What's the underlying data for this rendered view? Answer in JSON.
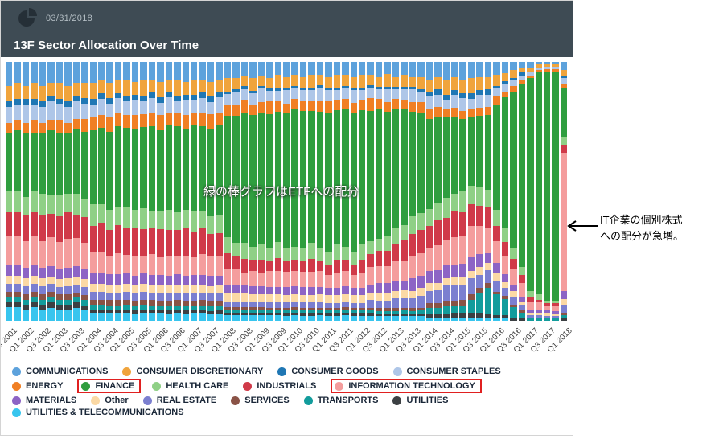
{
  "header": {
    "date": "03/31/2018",
    "title": "13F Sector Allocation Over Time"
  },
  "icons": {
    "header_icon": "pie-chart-icon",
    "annotation_arrow_icon": "left-arrow-icon"
  },
  "colors": {
    "header_bg": "#3e4b54",
    "highlight_box": "#e02020"
  },
  "annotations": {
    "etf_note": "緑の棒グラフはETFへの配分",
    "it_note_line1": "IT企業の個別株式",
    "it_note_line2": "への配分が急増。"
  },
  "legend": {
    "rows": [
      [
        0,
        1,
        2,
        3
      ],
      [
        4,
        5,
        6,
        7,
        8
      ],
      [
        9,
        10,
        11,
        12,
        13,
        14
      ],
      [
        15
      ]
    ]
  },
  "chart_data": {
    "type": "bar",
    "stacked": true,
    "stack_mode": "percent",
    "title": "13F Sector Allocation Over Time",
    "xlabel": "",
    "ylabel": "",
    "ylim": [
      0,
      100
    ],
    "grid": false,
    "legend_position": "bottom",
    "x_tick_every": 2,
    "x": [
      "Q3 2001",
      "Q4 2001",
      "Q1 2002",
      "Q2 2002",
      "Q3 2002",
      "Q4 2002",
      "Q1 2003",
      "Q2 2003",
      "Q3 2003",
      "Q4 2003",
      "Q1 2004",
      "Q2 2004",
      "Q3 2004",
      "Q4 2004",
      "Q1 2005",
      "Q2 2005",
      "Q3 2005",
      "Q4 2005",
      "Q1 2006",
      "Q2 2006",
      "Q3 2006",
      "Q4 2006",
      "Q1 2007",
      "Q2 2007",
      "Q3 2007",
      "Q4 2007",
      "Q1 2008",
      "Q2 2008",
      "Q3 2008",
      "Q4 2008",
      "Q1 2009",
      "Q2 2009",
      "Q3 2009",
      "Q4 2009",
      "Q1 2010",
      "Q2 2010",
      "Q3 2010",
      "Q4 2010",
      "Q1 2011",
      "Q2 2011",
      "Q3 2011",
      "Q4 2011",
      "Q1 2012",
      "Q2 2012",
      "Q3 2012",
      "Q4 2012",
      "Q1 2013",
      "Q2 2013",
      "Q3 2013",
      "Q4 2013",
      "Q1 2014",
      "Q2 2014",
      "Q3 2014",
      "Q4 2014",
      "Q1 2015",
      "Q2 2015",
      "Q3 2015",
      "Q4 2015",
      "Q1 2016",
      "Q2 2016",
      "Q3 2016",
      "Q4 2016",
      "Q1 2017",
      "Q2 2017",
      "Q3 2017",
      "Q4 2017",
      "Q1 2018"
    ],
    "series": [
      {
        "name": "COMMUNICATIONS",
        "color": "#5da2dc",
        "boxed": false,
        "values": [
          9,
          8,
          9,
          8,
          9,
          8,
          8,
          9,
          8,
          8,
          8,
          7,
          8,
          7,
          7,
          8,
          7,
          7,
          8,
          7,
          7,
          8,
          7,
          7,
          8,
          7,
          6,
          6,
          5,
          6,
          5,
          6,
          5,
          6,
          5,
          6,
          5,
          5,
          6,
          5,
          5,
          6,
          5,
          5,
          6,
          5,
          6,
          5,
          6,
          6,
          7,
          6,
          7,
          6,
          7,
          6,
          6,
          6,
          5,
          4,
          3,
          2,
          2,
          1,
          1,
          1,
          3
        ]
      },
      {
        "name": "CONSUMER DISCRETIONARY",
        "color": "#f0a43c",
        "boxed": false,
        "values": [
          6,
          6,
          5,
          6,
          6,
          5,
          6,
          6,
          5,
          6,
          6,
          5,
          6,
          5,
          6,
          5,
          6,
          5,
          6,
          5,
          6,
          5,
          6,
          5,
          6,
          5,
          5,
          4,
          4,
          5,
          4,
          4,
          5,
          4,
          4,
          4,
          5,
          4,
          4,
          5,
          4,
          4,
          5,
          4,
          4,
          5,
          4,
          5,
          4,
          5,
          5,
          5,
          6,
          5,
          5,
          6,
          5,
          5,
          4,
          3,
          3,
          2,
          2,
          1,
          1,
          1,
          2
        ]
      },
      {
        "name": "CONSUMER GOODS",
        "color": "#1f77b4",
        "boxed": false,
        "values": [
          2,
          2,
          2,
          2,
          2,
          2,
          2,
          2,
          2,
          2,
          2,
          2,
          2,
          2,
          2,
          2,
          2,
          2,
          2,
          2,
          2,
          2,
          2,
          2,
          2,
          2,
          1,
          1,
          1,
          1,
          1,
          1,
          1,
          1,
          1,
          1,
          1,
          1,
          1,
          1,
          1,
          1,
          1,
          1,
          1,
          1,
          1,
          1,
          1,
          1,
          2,
          2,
          2,
          2,
          2,
          2,
          2,
          2,
          1,
          1,
          1,
          1,
          0,
          0,
          0,
          0,
          1
        ]
      },
      {
        "name": "CONSUMER STAPLES",
        "color": "#aec6e8",
        "boxed": false,
        "values": [
          6,
          6,
          7,
          6,
          6,
          7,
          6,
          6,
          7,
          6,
          5,
          6,
          5,
          6,
          5,
          6,
          5,
          6,
          5,
          6,
          5,
          6,
          5,
          6,
          5,
          6,
          4,
          5,
          4,
          4,
          5,
          4,
          4,
          5,
          4,
          4,
          4,
          5,
          4,
          4,
          4,
          5,
          4,
          4,
          4,
          5,
          4,
          4,
          5,
          4,
          5,
          5,
          4,
          5,
          5,
          4,
          5,
          5,
          3,
          3,
          2,
          2,
          1,
          1,
          1,
          1,
          2
        ]
      },
      {
        "name": "ENERGY",
        "color": "#f07f24",
        "boxed": false,
        "values": [
          4,
          4,
          4,
          5,
          4,
          4,
          5,
          4,
          4,
          5,
          5,
          5,
          6,
          5,
          5,
          6,
          5,
          5,
          6,
          5,
          5,
          6,
          5,
          5,
          6,
          5,
          4,
          4,
          5,
          4,
          4,
          5,
          4,
          4,
          4,
          4,
          4,
          4,
          5,
          4,
          4,
          4,
          4,
          5,
          4,
          4,
          4,
          4,
          4,
          4,
          4,
          4,
          3,
          4,
          3,
          3,
          3,
          3,
          3,
          2,
          2,
          1,
          1,
          1,
          1,
          1,
          2
        ]
      },
      {
        "name": "FINANCE",
        "color": "#2f9e3f",
        "boxed": true,
        "values": [
          22,
          23,
          24,
          22,
          23,
          25,
          24,
          23,
          25,
          26,
          28,
          29,
          30,
          31,
          30,
          32,
          31,
          33,
          32,
          34,
          33,
          32,
          34,
          33,
          35,
          36,
          45,
          47,
          48,
          50,
          49,
          51,
          50,
          52,
          52,
          53,
          51,
          52,
          54,
          53,
          52,
          54,
          53,
          51,
          52,
          50,
          48,
          46,
          42,
          40,
          36,
          34,
          32,
          30,
          28,
          26,
          28,
          30,
          40,
          48,
          58,
          68,
          80,
          85,
          90,
          92,
          18
        ]
      },
      {
        "name": "HEALTH CARE",
        "color": "#8fd086",
        "boxed": false,
        "values": [
          8,
          8,
          7,
          8,
          8,
          7,
          8,
          7,
          8,
          7,
          8,
          7,
          8,
          7,
          8,
          7,
          8,
          7,
          7,
          8,
          7,
          7,
          8,
          7,
          7,
          7,
          6,
          5,
          6,
          5,
          6,
          5,
          6,
          5,
          5,
          5,
          6,
          5,
          5,
          6,
          5,
          5,
          6,
          5,
          5,
          6,
          6,
          6,
          7,
          7,
          7,
          7,
          8,
          7,
          8,
          7,
          7,
          7,
          6,
          5,
          4,
          3,
          2,
          2,
          1,
          1,
          3
        ]
      },
      {
        "name": "INDUSTRIALS",
        "color": "#d03a49",
        "boxed": false,
        "values": [
          9,
          9,
          10,
          9,
          10,
          9,
          10,
          10,
          9,
          10,
          10,
          11,
          10,
          11,
          10,
          11,
          10,
          10,
          11,
          10,
          10,
          11,
          10,
          10,
          9,
          9,
          6,
          5,
          5,
          4,
          5,
          4,
          5,
          4,
          4,
          4,
          5,
          4,
          4,
          5,
          4,
          4,
          5,
          5,
          6,
          6,
          7,
          8,
          9,
          9,
          9,
          10,
          9,
          10,
          9,
          8,
          8,
          8,
          6,
          5,
          4,
          3,
          2,
          1,
          1,
          1,
          3
        ]
      },
      {
        "name": "INFORMATION TECHNOLOGY",
        "color": "#f49d9d",
        "boxed": true,
        "values": [
          11,
          11,
          10,
          11,
          10,
          11,
          10,
          11,
          11,
          10,
          8,
          8,
          7,
          8,
          7,
          8,
          7,
          8,
          7,
          8,
          7,
          8,
          7,
          8,
          8,
          8,
          6,
          6,
          5,
          6,
          5,
          6,
          6,
          6,
          6,
          6,
          6,
          6,
          5,
          6,
          6,
          5,
          6,
          7,
          7,
          7,
          8,
          8,
          9,
          9,
          9,
          10,
          10,
          11,
          11,
          12,
          11,
          10,
          8,
          7,
          6,
          5,
          3,
          3,
          2,
          2,
          52
        ]
      },
      {
        "name": "MATERIALS",
        "color": "#8d64c5",
        "boxed": false,
        "values": [
          4,
          4,
          4,
          4,
          4,
          4,
          4,
          4,
          4,
          4,
          4,
          4,
          4,
          4,
          4,
          4,
          4,
          4,
          4,
          4,
          4,
          4,
          4,
          4,
          4,
          4,
          3,
          3,
          3,
          3,
          3,
          3,
          3,
          3,
          3,
          3,
          3,
          3,
          3,
          3,
          3,
          3,
          3,
          3,
          4,
          4,
          4,
          4,
          5,
          5,
          5,
          5,
          5,
          5,
          5,
          5,
          5,
          4,
          4,
          3,
          2,
          2,
          1,
          1,
          1,
          1,
          3
        ]
      },
      {
        "name": "Other",
        "color": "#fbd9a5",
        "boxed": false,
        "values": [
          3,
          3,
          3,
          3,
          3,
          3,
          3,
          3,
          3,
          3,
          3,
          3,
          3,
          3,
          3,
          3,
          3,
          3,
          3,
          3,
          3,
          3,
          3,
          3,
          3,
          3,
          3,
          3,
          3,
          3,
          3,
          3,
          3,
          3,
          3,
          3,
          3,
          3,
          3,
          3,
          3,
          3,
          3,
          3,
          3,
          3,
          3,
          3,
          3,
          3,
          3,
          3,
          3,
          3,
          3,
          3,
          3,
          3,
          3,
          2,
          2,
          1,
          1,
          1,
          1,
          1,
          2
        ]
      },
      {
        "name": "REAL ESTATE",
        "color": "#7b7fd0",
        "boxed": false,
        "values": [
          3,
          3,
          3,
          3,
          3,
          3,
          3,
          3,
          3,
          3,
          3,
          3,
          3,
          3,
          3,
          3,
          3,
          3,
          3,
          3,
          3,
          3,
          3,
          3,
          3,
          3,
          2,
          2,
          2,
          2,
          2,
          2,
          2,
          2,
          2,
          2,
          2,
          2,
          2,
          2,
          2,
          2,
          2,
          3,
          3,
          3,
          4,
          4,
          4,
          5,
          5,
          5,
          6,
          6,
          6,
          6,
          5,
          5,
          4,
          3,
          3,
          2,
          1,
          1,
          1,
          1,
          3
        ]
      },
      {
        "name": "SERVICES",
        "color": "#8a5346",
        "boxed": false,
        "values": [
          2,
          2,
          2,
          2,
          2,
          2,
          2,
          2,
          2,
          2,
          2,
          2,
          2,
          2,
          2,
          2,
          2,
          2,
          2,
          2,
          2,
          2,
          2,
          2,
          2,
          2,
          1,
          1,
          1,
          1,
          1,
          1,
          1,
          1,
          1,
          1,
          1,
          1,
          1,
          1,
          1,
          1,
          1,
          1,
          1,
          1,
          1,
          1,
          1,
          1,
          2,
          2,
          2,
          2,
          2,
          2,
          2,
          2,
          1,
          1,
          1,
          1,
          0,
          0,
          0,
          0,
          1
        ]
      },
      {
        "name": "TRANSPORTS",
        "color": "#129c9c",
        "boxed": false,
        "values": [
          2,
          2,
          2,
          2,
          2,
          2,
          2,
          2,
          2,
          2,
          2,
          2,
          2,
          2,
          2,
          2,
          2,
          2,
          2,
          2,
          2,
          2,
          2,
          2,
          2,
          2,
          1,
          1,
          1,
          1,
          1,
          1,
          1,
          1,
          1,
          1,
          1,
          1,
          1,
          1,
          1,
          1,
          1,
          1,
          1,
          1,
          1,
          1,
          1,
          1,
          2,
          2,
          3,
          3,
          3,
          5,
          8,
          10,
          8,
          6,
          4,
          2,
          1,
          1,
          1,
          1,
          1
        ]
      },
      {
        "name": "UTILITIES",
        "color": "#3c4043",
        "boxed": false,
        "values": [
          2,
          2,
          2,
          2,
          2,
          2,
          2,
          2,
          2,
          2,
          1,
          1,
          1,
          1,
          1,
          1,
          1,
          1,
          1,
          1,
          1,
          1,
          1,
          1,
          1,
          1,
          1,
          1,
          1,
          1,
          1,
          1,
          1,
          1,
          1,
          1,
          1,
          1,
          1,
          1,
          1,
          1,
          1,
          1,
          1,
          1,
          1,
          1,
          1,
          1,
          2,
          2,
          2,
          2,
          2,
          2,
          2,
          2,
          1,
          1,
          1,
          1,
          0,
          0,
          0,
          0,
          1
        ]
      },
      {
        "name": "UTILITIES & TELECOMMUNICATIONS",
        "color": "#38c5ee",
        "boxed": false,
        "values": [
          5,
          5,
          4,
          5,
          4,
          5,
          4,
          4,
          5,
          4,
          3,
          3,
          3,
          3,
          3,
          3,
          3,
          3,
          3,
          3,
          3,
          3,
          3,
          3,
          3,
          3,
          2,
          2,
          2,
          2,
          2,
          2,
          2,
          2,
          2,
          2,
          2,
          2,
          2,
          2,
          2,
          2,
          2,
          2,
          2,
          2,
          2,
          2,
          2,
          2,
          1,
          1,
          1,
          1,
          1,
          1,
          1,
          1,
          1,
          1,
          0,
          0,
          0,
          0,
          0,
          0,
          0
        ]
      }
    ]
  }
}
